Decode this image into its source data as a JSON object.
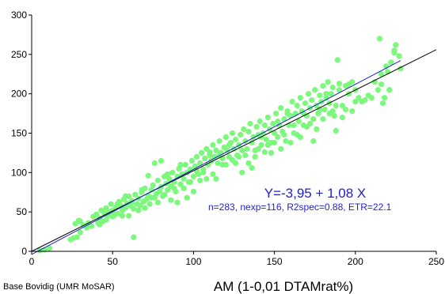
{
  "chart_data": {
    "type": "scatter",
    "title": "",
    "xlabel": "AM (1-0,01 DTAMrat%)",
    "ylabel": "",
    "xlim": [
      0,
      250
    ],
    "ylim": [
      0,
      300
    ],
    "xticks": [
      0,
      50,
      100,
      150,
      200,
      250
    ],
    "yticks": [
      0,
      50,
      100,
      150,
      200,
      250,
      300
    ],
    "grid": false,
    "point_color": "#7cf97c",
    "source_note": "Base Bovidig (UMR MoSAR)",
    "annotation": {
      "equation": "Y=-3,95 + 1,08 X",
      "stats": "n=283, nexp=116, R2spec=0.88, ETR=22.1",
      "color": "#1f1fd6"
    },
    "lines": [
      {
        "kind": "identity",
        "x": [
          0,
          250
        ],
        "y": [
          0,
          256
        ],
        "color": "#000000"
      },
      {
        "kind": "regression",
        "x": [
          0,
          228
        ],
        "y": [
          -3.95,
          242.3
        ],
        "color": "#1f1fd6"
      }
    ],
    "points": [
      [
        5,
        1
      ],
      [
        8,
        2
      ],
      [
        11,
        4
      ],
      [
        24,
        15
      ],
      [
        26,
        17
      ],
      [
        28,
        18
      ],
      [
        30,
        24
      ],
      [
        27,
        35
      ],
      [
        29,
        39
      ],
      [
        30,
        38
      ],
      [
        32,
        33
      ],
      [
        34,
        30
      ],
      [
        35,
        36
      ],
      [
        37,
        32
      ],
      [
        38,
        44
      ],
      [
        40,
        47
      ],
      [
        41,
        36
      ],
      [
        42,
        42
      ],
      [
        43,
        52
      ],
      [
        44,
        38
      ],
      [
        45,
        48
      ],
      [
        46,
        55
      ],
      [
        47,
        45
      ],
      [
        48,
        50
      ],
      [
        49,
        60
      ],
      [
        50,
        52
      ],
      [
        51,
        46
      ],
      [
        52,
        56
      ],
      [
        53,
        48
      ],
      [
        54,
        63
      ],
      [
        55,
        58
      ],
      [
        56,
        52
      ],
      [
        57,
        66
      ],
      [
        58,
        55
      ],
      [
        59,
        61
      ],
      [
        60,
        70
      ],
      [
        61,
        58
      ],
      [
        62,
        64
      ],
      [
        63,
        54
      ],
      [
        64,
        72
      ],
      [
        65,
        60
      ],
      [
        66,
        67
      ],
      [
        67,
        58
      ],
      [
        68,
        75
      ],
      [
        69,
        63
      ],
      [
        70,
        80
      ],
      [
        71,
        66
      ],
      [
        72,
        71
      ],
      [
        73,
        60
      ],
      [
        74,
        78
      ],
      [
        75,
        84
      ],
      [
        76,
        68
      ],
      [
        77,
        73
      ],
      [
        78,
        90
      ],
      [
        79,
        76
      ],
      [
        80,
        82
      ],
      [
        81,
        70
      ],
      [
        82,
        95
      ],
      [
        83,
        86
      ],
      [
        84,
        78
      ],
      [
        85,
        92
      ],
      [
        86,
        83
      ],
      [
        87,
        100
      ],
      [
        88,
        88
      ],
      [
        89,
        76
      ],
      [
        90,
        95
      ],
      [
        91,
        105
      ],
      [
        92,
        85
      ],
      [
        93,
        98
      ],
      [
        94,
        92
      ],
      [
        95,
        110
      ],
      [
        96,
        100
      ],
      [
        97,
        88
      ],
      [
        98,
        104
      ],
      [
        99,
        115
      ],
      [
        100,
        95
      ],
      [
        101,
        108
      ],
      [
        102,
        120
      ],
      [
        103,
        98
      ],
      [
        104,
        112
      ],
      [
        105,
        125
      ],
      [
        106,
        104
      ],
      [
        107,
        118
      ],
      [
        108,
        130
      ],
      [
        109,
        110
      ],
      [
        110,
        122
      ],
      [
        111,
        115
      ],
      [
        112,
        135
      ],
      [
        113,
        120
      ],
      [
        114,
        128
      ],
      [
        115,
        112
      ],
      [
        116,
        140
      ],
      [
        117,
        125
      ],
      [
        118,
        118
      ],
      [
        119,
        132
      ],
      [
        120,
        145
      ],
      [
        121,
        128
      ],
      [
        122,
        120
      ],
      [
        123,
        138
      ],
      [
        124,
        150
      ],
      [
        125,
        130
      ],
      [
        126,
        142
      ],
      [
        127,
        122
      ],
      [
        128,
        135
      ],
      [
        129,
        148
      ],
      [
        130,
        128
      ],
      [
        131,
        155
      ],
      [
        132,
        140
      ],
      [
        133,
        130
      ],
      [
        134,
        152
      ],
      [
        135,
        162
      ],
      [
        136,
        138
      ],
      [
        137,
        145
      ],
      [
        138,
        128
      ],
      [
        139,
        158
      ],
      [
        140,
        148
      ],
      [
        141,
        165
      ],
      [
        142,
        135
      ],
      [
        143,
        150
      ],
      [
        144,
        160
      ],
      [
        145,
        142
      ],
      [
        146,
        170
      ],
      [
        147,
        155
      ],
      [
        148,
        138
      ],
      [
        149,
        162
      ],
      [
        150,
        150
      ],
      [
        151,
        175
      ],
      [
        152,
        145
      ],
      [
        153,
        160
      ],
      [
        154,
        182
      ],
      [
        155,
        152
      ],
      [
        156,
        168
      ],
      [
        157,
        140
      ],
      [
        158,
        178
      ],
      [
        159,
        160
      ],
      [
        160,
        172
      ],
      [
        161,
        190
      ],
      [
        162,
        150
      ],
      [
        163,
        175
      ],
      [
        164,
        185
      ],
      [
        165,
        165
      ],
      [
        166,
        195
      ],
      [
        167,
        178
      ],
      [
        168,
        160
      ],
      [
        169,
        188
      ],
      [
        170,
        172
      ],
      [
        171,
        200
      ],
      [
        172,
        182
      ],
      [
        173,
        192
      ],
      [
        174,
        168
      ],
      [
        175,
        205
      ],
      [
        176,
        185
      ],
      [
        177,
        175
      ],
      [
        178,
        198
      ],
      [
        179,
        190
      ],
      [
        180,
        210
      ],
      [
        181,
        180
      ],
      [
        182,
        195
      ],
      [
        183,
        215
      ],
      [
        184,
        188
      ],
      [
        185,
        200
      ],
      [
        186,
        178
      ],
      [
        187,
        172
      ],
      [
        188,
        153
      ],
      [
        189,
        243
      ],
      [
        190,
        205
      ],
      [
        192,
        185
      ],
      [
        194,
        210
      ],
      [
        196,
        200
      ],
      [
        198,
        215
      ],
      [
        200,
        205
      ],
      [
        202,
        195
      ],
      [
        204,
        190
      ],
      [
        208,
        198
      ],
      [
        212,
        215
      ],
      [
        215,
        270
      ],
      [
        216,
        225
      ],
      [
        217,
        188
      ],
      [
        218,
        195
      ],
      [
        220,
        228
      ],
      [
        221,
        205
      ],
      [
        222,
        240
      ],
      [
        224,
        255
      ],
      [
        225,
        262
      ],
      [
        227,
        248
      ],
      [
        228,
        232
      ],
      [
        42,
        34
      ],
      [
        46,
        40
      ],
      [
        50,
        44
      ],
      [
        53,
        60
      ],
      [
        56,
        45
      ],
      [
        58,
        70
      ],
      [
        60,
        45
      ],
      [
        62,
        62
      ],
      [
        63,
        18
      ],
      [
        66,
        52
      ],
      [
        68,
        78
      ],
      [
        70,
        55
      ],
      [
        72,
        96
      ],
      [
        74,
        68
      ],
      [
        76,
        112
      ],
      [
        78,
        62
      ],
      [
        80,
        115
      ],
      [
        82,
        72
      ],
      [
        84,
        98
      ],
      [
        86,
        65
      ],
      [
        88,
        80
      ],
      [
        90,
        62
      ],
      [
        92,
        110
      ],
      [
        94,
        80
      ],
      [
        96,
        68
      ],
      [
        98,
        88
      ],
      [
        100,
        76
      ],
      [
        102,
        102
      ],
      [
        104,
        90
      ],
      [
        106,
        100
      ],
      [
        108,
        92
      ],
      [
        110,
        126
      ],
      [
        112,
        98
      ],
      [
        114,
        92
      ],
      [
        116,
        122
      ],
      [
        118,
        110
      ],
      [
        120,
        110
      ],
      [
        122,
        135
      ],
      [
        124,
        116
      ],
      [
        126,
        112
      ],
      [
        128,
        120
      ],
      [
        130,
        100
      ],
      [
        132,
        122
      ],
      [
        134,
        112
      ],
      [
        136,
        106
      ],
      [
        138,
        120
      ],
      [
        140,
        130
      ],
      [
        142,
        145
      ],
      [
        144,
        126
      ],
      [
        146,
        135
      ],
      [
        148,
        125
      ],
      [
        150,
        138
      ],
      [
        152,
        165
      ],
      [
        154,
        130
      ],
      [
        156,
        148
      ],
      [
        158,
        175
      ],
      [
        160,
        138
      ],
      [
        162,
        160
      ],
      [
        164,
        148
      ],
      [
        166,
        145
      ],
      [
        168,
        175
      ],
      [
        170,
        158
      ],
      [
        172,
        162
      ],
      [
        174,
        140
      ],
      [
        176,
        155
      ],
      [
        178,
        180
      ],
      [
        180,
        168
      ],
      [
        182,
        200
      ],
      [
        184,
        175
      ],
      [
        186,
        208
      ],
      [
        188,
        185
      ],
      [
        190,
        213
      ],
      [
        192,
        170
      ],
      [
        194,
        180
      ],
      [
        196,
        212
      ],
      [
        198,
        178
      ],
      [
        200,
        190
      ],
      [
        206,
        192
      ],
      [
        210,
        195
      ],
      [
        214,
        205
      ],
      [
        216,
        212
      ],
      [
        219,
        235
      ],
      [
        224,
        252
      ]
    ]
  }
}
